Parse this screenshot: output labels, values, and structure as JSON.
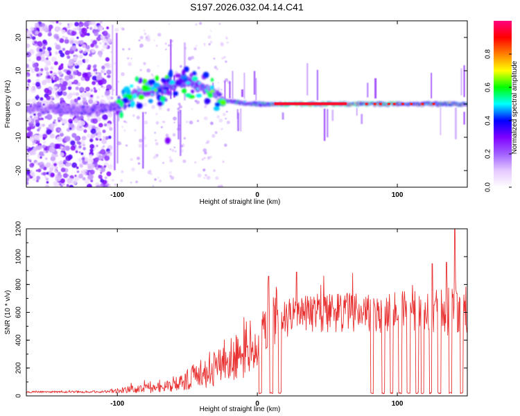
{
  "title": "S197.2026.032.04.14.C41",
  "chart_data": [
    {
      "type": "heatmap",
      "id": "spectrogram",
      "title": "S197.2026.032.04.14.C41",
      "xlabel": "Height of straight line (km)",
      "ylabel": "Frequency (Hz)",
      "xlim": [
        -165,
        150
      ],
      "ylim": [
        -25,
        25
      ],
      "xticks": [
        -100,
        0,
        100
      ],
      "yticks": [
        -20,
        -10,
        0,
        10,
        20
      ],
      "colorbar": {
        "label": "Normalized spectral amplitude",
        "range": [
          0,
          1
        ],
        "ticks": [
          0.0,
          0.2,
          0.4,
          0.6,
          0.8
        ],
        "colormap": [
          "#ffffff",
          "#e4c8ff",
          "#a060ff",
          "#7f00ff",
          "#0000ff",
          "#00ffff",
          "#00ff00",
          "#ffff00",
          "#ff8000",
          "#ff0000",
          "#ff0080"
        ]
      },
      "features": {
        "noise_region_x": [
          -165,
          -105
        ],
        "ridge_points": [
          {
            "x": -145,
            "y": -1.5
          },
          {
            "x": -120,
            "y": -2
          },
          {
            "x": -105,
            "y": -1
          },
          {
            "x": -95,
            "y": 0
          },
          {
            "x": -88,
            "y": 3
          },
          {
            "x": -80,
            "y": 4
          },
          {
            "x": -70,
            "y": 4
          },
          {
            "x": -60,
            "y": 6
          },
          {
            "x": -50,
            "y": 7
          },
          {
            "x": -40,
            "y": 5
          },
          {
            "x": -30,
            "y": 3
          },
          {
            "x": -25,
            "y": 1
          },
          {
            "x": 0,
            "y": 0
          },
          {
            "x": 150,
            "y": 0
          }
        ],
        "strong_band_x": [
          10,
          100
        ],
        "side_blob": {
          "x": -64,
          "y": -11
        }
      }
    },
    {
      "type": "line",
      "id": "snr",
      "xlabel": "Height of straight line (km)",
      "ylabel": "SNR (10 * v/v)",
      "xlim": [
        -165,
        150
      ],
      "ylim": [
        0,
        1200
      ],
      "xticks": [
        -100,
        0,
        100
      ],
      "yticks": [
        0,
        200,
        400,
        600,
        800,
        1000,
        1200
      ],
      "color": "#e83030",
      "envelope": [
        {
          "x": -165,
          "mean": 28,
          "spread": 6
        },
        {
          "x": -110,
          "mean": 30,
          "spread": 8
        },
        {
          "x": -100,
          "mean": 40,
          "spread": 20
        },
        {
          "x": -80,
          "mean": 55,
          "spread": 35
        },
        {
          "x": -60,
          "mean": 75,
          "spread": 45
        },
        {
          "x": -50,
          "mean": 110,
          "spread": 80
        },
        {
          "x": -40,
          "mean": 160,
          "spread": 110
        },
        {
          "x": -30,
          "mean": 210,
          "spread": 140
        },
        {
          "x": -20,
          "mean": 260,
          "spread": 160
        },
        {
          "x": -10,
          "mean": 300,
          "spread": 170
        },
        {
          "x": 0,
          "mean": 400,
          "spread": 180
        },
        {
          "x": 10,
          "mean": 520,
          "spread": 170
        },
        {
          "x": 20,
          "mean": 560,
          "spread": 150
        },
        {
          "x": 30,
          "mean": 600,
          "spread": 140
        },
        {
          "x": 60,
          "mean": 600,
          "spread": 140
        },
        {
          "x": 100,
          "mean": 600,
          "spread": 150
        },
        {
          "x": 130,
          "mean": 600,
          "spread": 170
        },
        {
          "x": 150,
          "mean": 610,
          "spread": 180
        }
      ],
      "peaks": [
        {
          "x": 141,
          "y": 1200
        },
        {
          "x": 135,
          "y": 960
        },
        {
          "x": 125,
          "y": 950
        },
        {
          "x": 28,
          "y": 890
        },
        {
          "x": 8,
          "y": 860
        }
      ],
      "dropouts_x": [
        2,
        10,
        16,
        82,
        90,
        96,
        102,
        108,
        114,
        118,
        124,
        130,
        138,
        146
      ]
    }
  ]
}
